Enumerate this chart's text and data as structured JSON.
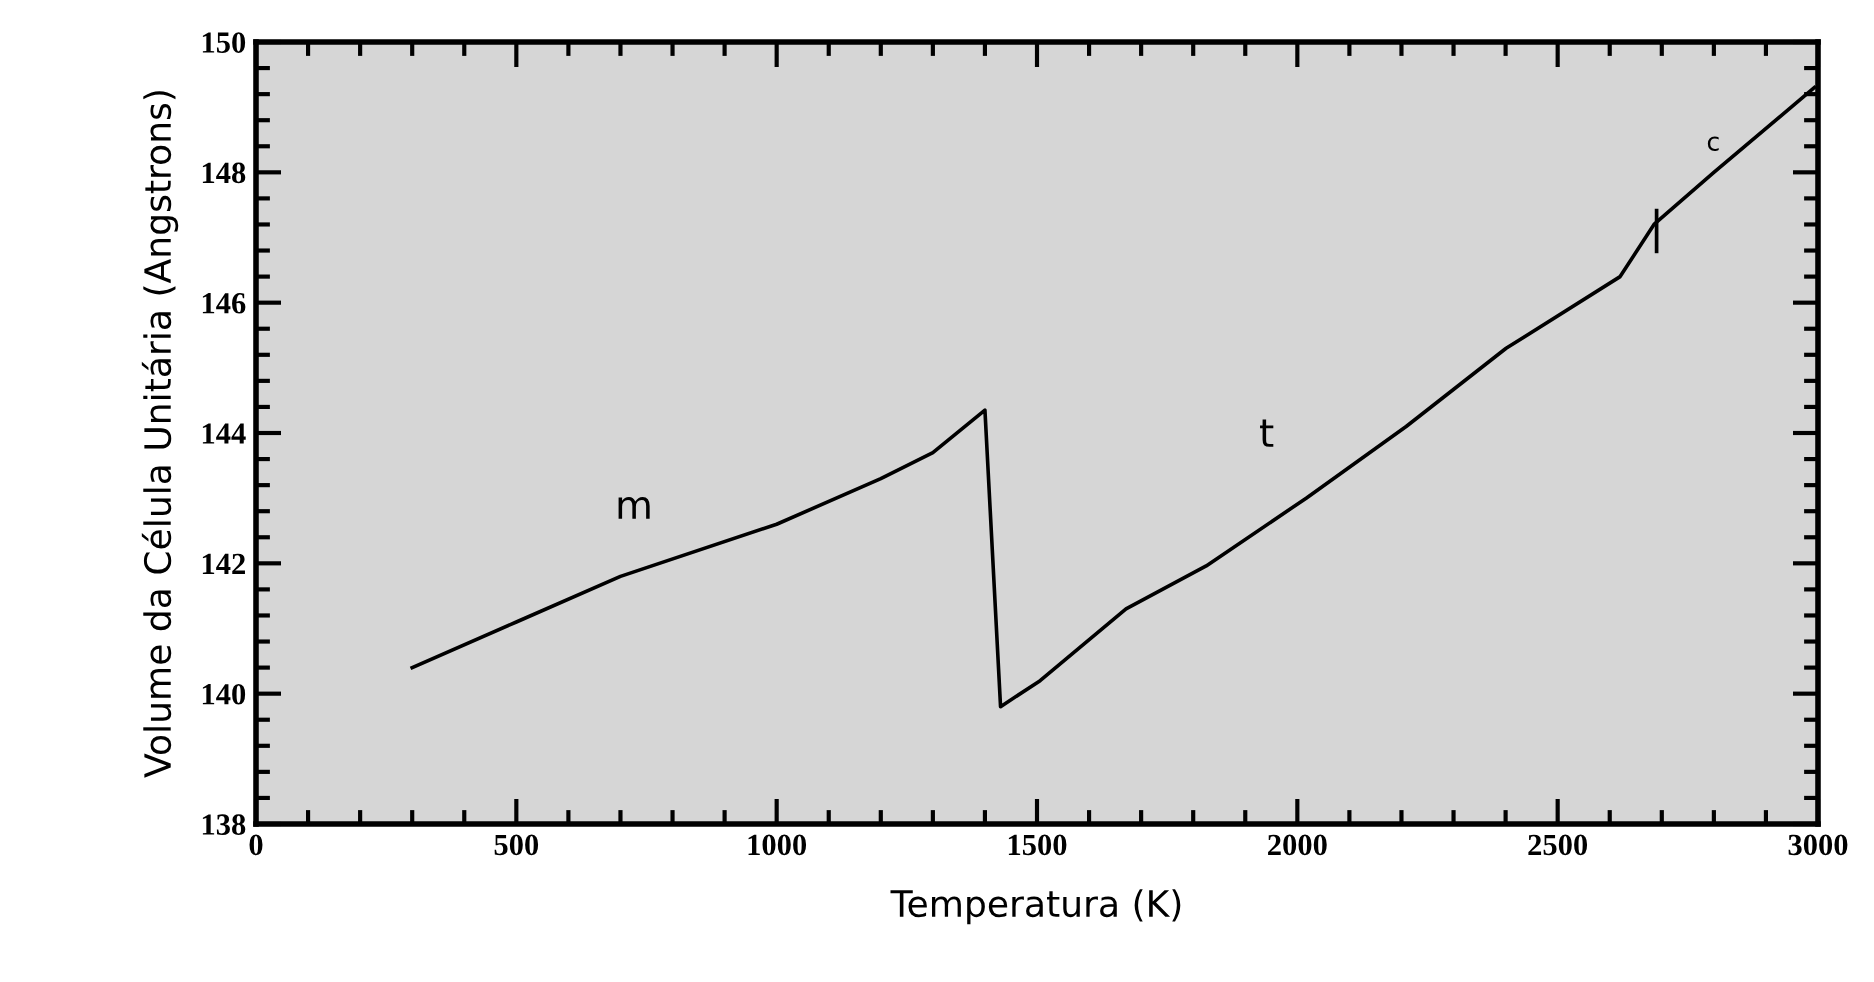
{
  "chart_data": {
    "type": "line",
    "xlabel": "Temperatura (K)",
    "ylabel": "Volume da Célula Unitária (Angstrons)",
    "x": [
      300,
      500,
      700,
      1000,
      1200,
      1300,
      1400,
      1430,
      1506,
      1671,
      1825,
      2017,
      2209,
      2401,
      2620,
      2685,
      2800,
      2993
    ],
    "values": [
      140.4,
      141.1,
      141.8,
      142.6,
      143.3,
      143.7,
      144.35,
      139.8,
      140.2,
      141.3,
      141.96,
      143.0,
      144.1,
      145.3,
      146.4,
      147.2,
      148.0,
      149.3
    ],
    "color": "#000000",
    "xlim": [
      0,
      3000
    ],
    "ylim": [
      138,
      150
    ],
    "xticks": [
      0,
      500,
      1000,
      1500,
      2000,
      2500,
      3000
    ],
    "yticks": [
      138,
      140,
      142,
      144,
      146,
      148,
      150
    ],
    "grid": false,
    "marker": "none",
    "line_style": "solid",
    "annotations": [
      "m",
      "t",
      "c",
      {
        "text": "|",
        "x": 2690,
        "y": 147.1
      }
    ]
  }
}
